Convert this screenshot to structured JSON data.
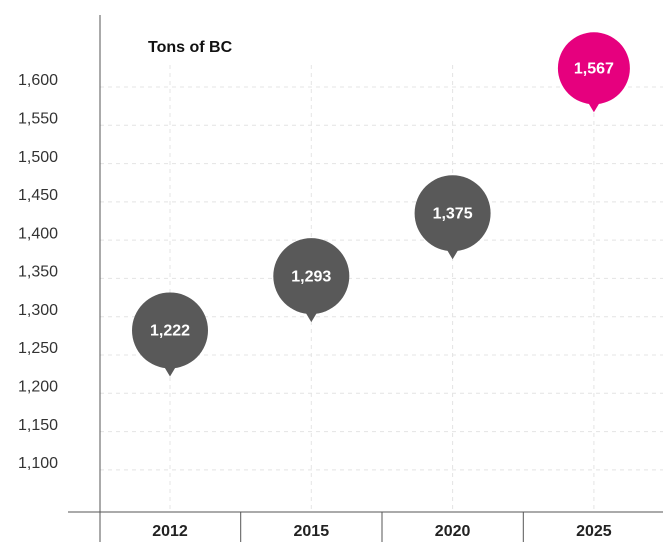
{
  "chart_data": {
    "type": "pin",
    "title": "Tons of BC",
    "categories": [
      "2012",
      "2015",
      "2020",
      "2025"
    ],
    "values": [
      1222,
      1293,
      1375,
      1567
    ],
    "value_labels": [
      "1,222",
      "1,293",
      "1,375",
      "1,567"
    ],
    "colors": [
      "#595959",
      "#595959",
      "#595959",
      "#e6007e"
    ],
    "ylim": [
      1045,
      1694
    ],
    "yticks": [
      {
        "value": 1100,
        "label": "1,100"
      },
      {
        "value": 1150,
        "label": "1,150"
      },
      {
        "value": 1200,
        "label": "1,200"
      },
      {
        "value": 1250,
        "label": "1,250"
      },
      {
        "value": 1300,
        "label": "1,300"
      },
      {
        "value": 1350,
        "label": "1,350"
      },
      {
        "value": 1400,
        "label": "1,400"
      },
      {
        "value": 1450,
        "label": "1,450"
      },
      {
        "value": 1500,
        "label": "1,500"
      },
      {
        "value": 1550,
        "label": "1,550"
      },
      {
        "value": 1600,
        "label": "1,600"
      }
    ],
    "grid": true
  }
}
